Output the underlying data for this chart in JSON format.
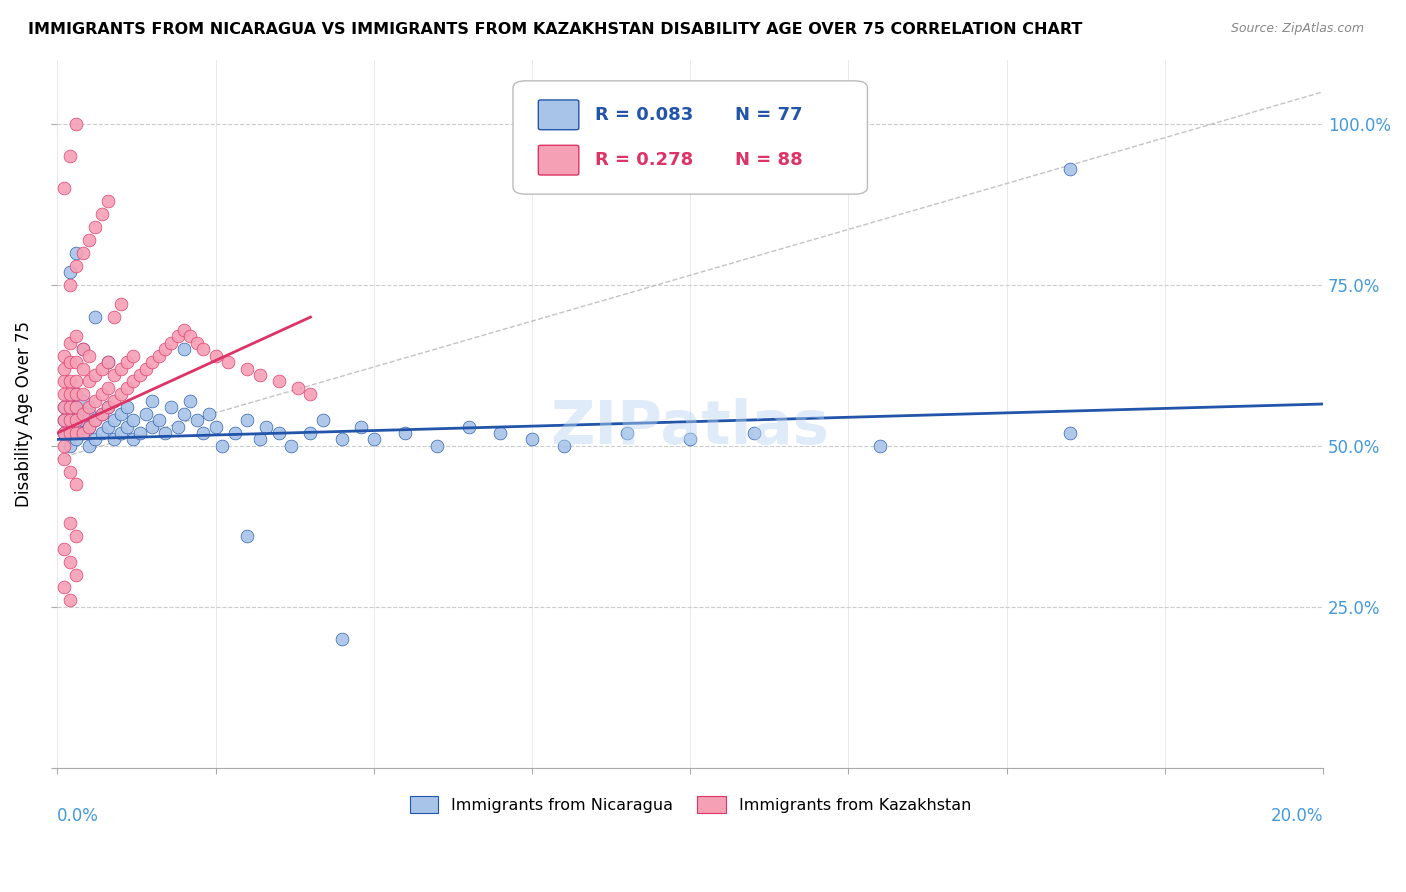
{
  "title": "IMMIGRANTS FROM NICARAGUA VS IMMIGRANTS FROM KAZAKHSTAN DISABILITY AGE OVER 75 CORRELATION CHART",
  "source": "Source: ZipAtlas.com",
  "ylabel": "Disability Age Over 75",
  "legend_nicaragua": {
    "R": "0.083",
    "N": "77"
  },
  "legend_kazakhstan": {
    "R": "0.278",
    "N": "88"
  },
  "color_nicaragua": "#a8c4e8",
  "color_kazakhstan": "#f5a0b5",
  "color_nicaragua_line": "#2255aa",
  "color_kazakhstan_line": "#dd3366",
  "watermark": "ZIPatlas",
  "xlim": [
    0.0,
    0.2
  ],
  "ylim": [
    0.0,
    1.1
  ],
  "nicaragua_x": [
    0.001,
    0.001,
    0.001,
    0.002,
    0.002,
    0.002,
    0.002,
    0.003,
    0.003,
    0.003,
    0.003,
    0.004,
    0.004,
    0.004,
    0.005,
    0.005,
    0.005,
    0.006,
    0.006,
    0.007,
    0.007,
    0.008,
    0.008,
    0.009,
    0.009,
    0.01,
    0.01,
    0.011,
    0.011,
    0.012,
    0.012,
    0.013,
    0.014,
    0.015,
    0.015,
    0.016,
    0.017,
    0.018,
    0.019,
    0.02,
    0.021,
    0.022,
    0.023,
    0.024,
    0.025,
    0.026,
    0.028,
    0.03,
    0.032,
    0.033,
    0.035,
    0.037,
    0.04,
    0.042,
    0.045,
    0.048,
    0.05,
    0.055,
    0.06,
    0.065,
    0.07,
    0.075,
    0.08,
    0.09,
    0.1,
    0.11,
    0.13,
    0.16,
    0.002,
    0.003,
    0.004,
    0.006,
    0.008,
    0.02,
    0.03,
    0.045,
    0.16
  ],
  "nicaragua_y": [
    0.52,
    0.54,
    0.56,
    0.5,
    0.53,
    0.55,
    0.57,
    0.51,
    0.53,
    0.56,
    0.58,
    0.52,
    0.54,
    0.57,
    0.5,
    0.53,
    0.55,
    0.51,
    0.54,
    0.52,
    0.55,
    0.53,
    0.56,
    0.51,
    0.54,
    0.52,
    0.55,
    0.53,
    0.56,
    0.51,
    0.54,
    0.52,
    0.55,
    0.53,
    0.57,
    0.54,
    0.52,
    0.56,
    0.53,
    0.55,
    0.57,
    0.54,
    0.52,
    0.55,
    0.53,
    0.5,
    0.52,
    0.54,
    0.51,
    0.53,
    0.52,
    0.5,
    0.52,
    0.54,
    0.51,
    0.53,
    0.51,
    0.52,
    0.5,
    0.53,
    0.52,
    0.51,
    0.5,
    0.52,
    0.51,
    0.52,
    0.5,
    0.52,
    0.77,
    0.8,
    0.65,
    0.7,
    0.63,
    0.65,
    0.36,
    0.2,
    0.93
  ],
  "kazakhstan_x": [
    0.001,
    0.001,
    0.001,
    0.001,
    0.001,
    0.001,
    0.001,
    0.001,
    0.002,
    0.002,
    0.002,
    0.002,
    0.002,
    0.002,
    0.002,
    0.003,
    0.003,
    0.003,
    0.003,
    0.003,
    0.003,
    0.003,
    0.004,
    0.004,
    0.004,
    0.004,
    0.004,
    0.005,
    0.005,
    0.005,
    0.005,
    0.006,
    0.006,
    0.006,
    0.007,
    0.007,
    0.007,
    0.008,
    0.008,
    0.008,
    0.009,
    0.009,
    0.01,
    0.01,
    0.011,
    0.011,
    0.012,
    0.012,
    0.013,
    0.014,
    0.015,
    0.016,
    0.017,
    0.018,
    0.019,
    0.02,
    0.021,
    0.022,
    0.023,
    0.025,
    0.027,
    0.03,
    0.032,
    0.035,
    0.038,
    0.04,
    0.002,
    0.003,
    0.004,
    0.005,
    0.006,
    0.007,
    0.008,
    0.009,
    0.01,
    0.001,
    0.002,
    0.003,
    0.002,
    0.003,
    0.001,
    0.002,
    0.003,
    0.001,
    0.002,
    0.003,
    0.001,
    0.002
  ],
  "kazakhstan_y": [
    0.52,
    0.54,
    0.56,
    0.58,
    0.6,
    0.62,
    0.64,
    0.5,
    0.52,
    0.54,
    0.56,
    0.58,
    0.6,
    0.63,
    0.66,
    0.52,
    0.54,
    0.56,
    0.58,
    0.6,
    0.63,
    0.67,
    0.52,
    0.55,
    0.58,
    0.62,
    0.65,
    0.53,
    0.56,
    0.6,
    0.64,
    0.54,
    0.57,
    0.61,
    0.55,
    0.58,
    0.62,
    0.56,
    0.59,
    0.63,
    0.57,
    0.61,
    0.58,
    0.62,
    0.59,
    0.63,
    0.6,
    0.64,
    0.61,
    0.62,
    0.63,
    0.64,
    0.65,
    0.66,
    0.67,
    0.68,
    0.67,
    0.66,
    0.65,
    0.64,
    0.63,
    0.62,
    0.61,
    0.6,
    0.59,
    0.58,
    0.75,
    0.78,
    0.8,
    0.82,
    0.84,
    0.86,
    0.88,
    0.7,
    0.72,
    0.48,
    0.46,
    0.44,
    0.38,
    0.36,
    0.34,
    0.32,
    0.3,
    0.9,
    0.95,
    1.0,
    0.28,
    0.26
  ]
}
